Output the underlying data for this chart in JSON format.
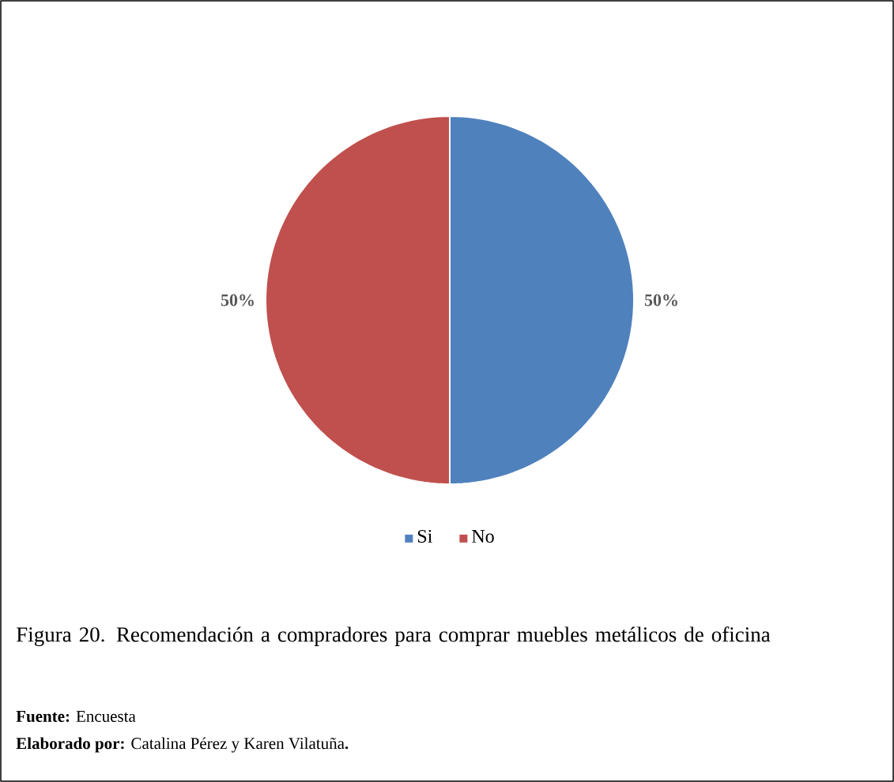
{
  "chart_data": {
    "type": "pie",
    "title": "Figura 20. Recomendación a compradores para comprar muebles metálicos de oficina",
    "categories": [
      "Si",
      "No"
    ],
    "values": [
      50,
      50
    ],
    "colors": [
      "#4f81bd",
      "#c0504d"
    ],
    "value_labels": [
      "50%",
      "50%"
    ],
    "legend": "bottom",
    "annotations": [
      "**Fuente:** Encuesta",
      "**Elaborado por:** Catalina Pérez y Karen Vilatuña**.**"
    ]
  }
}
